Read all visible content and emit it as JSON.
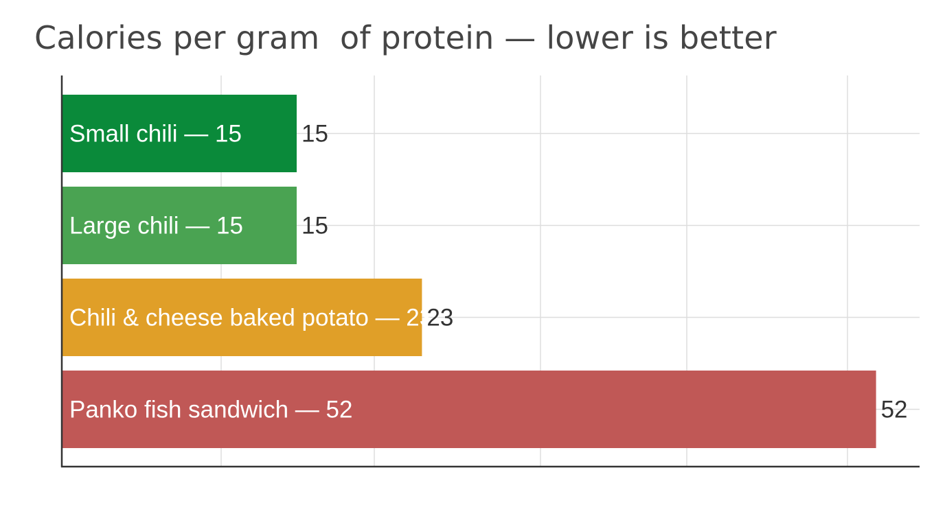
{
  "chart_data": {
    "type": "bar",
    "orientation": "horizontal",
    "title": "Calories per gram  of protein — lower is better",
    "xlabel": "",
    "ylabel": "",
    "grid": true,
    "legend": "none",
    "categories": [
      "Small chili",
      "Large chili",
      "Chili & cheese baked potato",
      "Panko fish sandwich"
    ],
    "values": [
      15,
      15,
      23,
      52
    ],
    "bar_labels": [
      "Small chili — 15",
      "Large chili — 15",
      "Chili & cheese baked potato — 23",
      "Panko fish sandwich — 52"
    ],
    "value_labels": [
      "15",
      "15",
      "23",
      "52"
    ],
    "colors": [
      "#0a8a3a",
      "#4aa352",
      "#e09f28",
      "#c05856"
    ]
  }
}
